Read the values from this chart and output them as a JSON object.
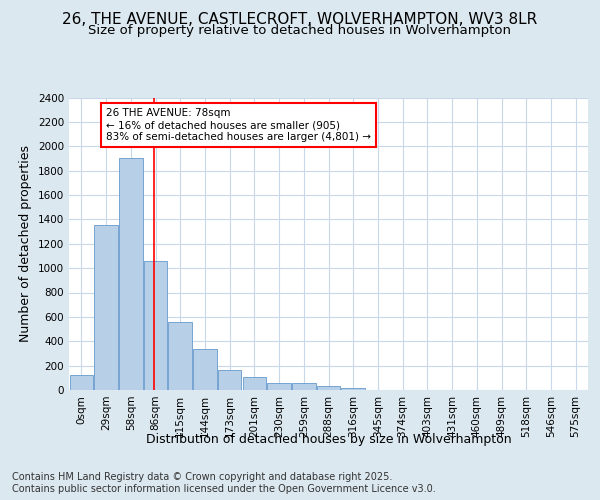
{
  "title_line1": "26, THE AVENUE, CASTLECROFT, WOLVERHAMPTON, WV3 8LR",
  "title_line2": "Size of property relative to detached houses in Wolverhampton",
  "xlabel": "Distribution of detached houses by size in Wolverhampton",
  "ylabel": "Number of detached properties",
  "footer_line1": "Contains HM Land Registry data © Crown copyright and database right 2025.",
  "footer_line2": "Contains public sector information licensed under the Open Government Licence v3.0.",
  "categories": [
    "0sqm",
    "29sqm",
    "58sqm",
    "86sqm",
    "115sqm",
    "144sqm",
    "173sqm",
    "201sqm",
    "230sqm",
    "259sqm",
    "288sqm",
    "316sqm",
    "345sqm",
    "374sqm",
    "403sqm",
    "431sqm",
    "460sqm",
    "489sqm",
    "518sqm",
    "546sqm",
    "575sqm"
  ],
  "values": [
    125,
    1350,
    1900,
    1060,
    560,
    335,
    165,
    105,
    60,
    55,
    30,
    20,
    0,
    0,
    0,
    0,
    0,
    0,
    0,
    0,
    0
  ],
  "bar_color": "#b8cfe8",
  "bar_edge_color": "#6699cc",
  "property_label": "26 THE AVENUE: 78sqm",
  "annotation_line1": "← 16% of detached houses are smaller (905)",
  "annotation_line2": "83% of semi-detached houses are larger (4,801) →",
  "vline_color": "red",
  "vline_x_index": 2.93,
  "annotation_box_color": "white",
  "annotation_box_edge": "red",
  "ylim": [
    0,
    2400
  ],
  "yticks": [
    0,
    200,
    400,
    600,
    800,
    1000,
    1200,
    1400,
    1600,
    1800,
    2000,
    2200,
    2400
  ],
  "background_color": "#dce8f0",
  "plot_background": "#ffffff",
  "grid_color": "#c8d8e8",
  "title_fontsize": 11,
  "subtitle_fontsize": 9.5,
  "axis_label_fontsize": 9,
  "tick_fontsize": 7.5,
  "footer_fontsize": 7
}
